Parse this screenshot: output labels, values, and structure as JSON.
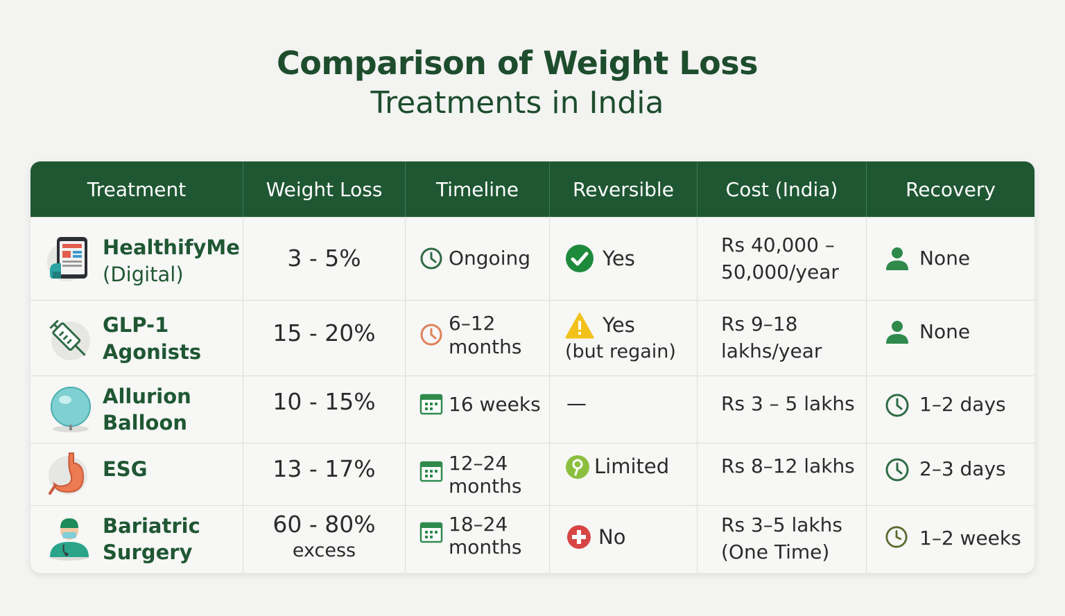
{
  "title": {
    "line1": "Comparison of Weight Loss",
    "line2": "Treatments in India"
  },
  "columns": [
    "Treatment",
    "Weight Loss",
    "Timeline",
    "Reversible",
    "Cost (India)",
    "Recovery"
  ],
  "rows": [
    {
      "treatment": {
        "name": "HealthifyMe",
        "sub": "(Digital)",
        "icon": "phone-app-icon"
      },
      "weight_loss": {
        "value": "3 - 5%",
        "sub": ""
      },
      "timeline": {
        "line1": "Ongoing",
        "line2": "",
        "icon": "clock-icon"
      },
      "reversible": {
        "line1": "Yes",
        "line2": "",
        "icon": "check-circle-icon"
      },
      "cost": {
        "line1": "Rs 40,000 –",
        "line2": "50,000/year"
      },
      "recovery": {
        "value": "None",
        "icon": "person-icon"
      }
    },
    {
      "treatment": {
        "name": "GLP-1",
        "sub": "Agonists",
        "icon": "syringe-icon"
      },
      "weight_loss": {
        "value": "15 - 20%",
        "sub": ""
      },
      "timeline": {
        "line1": "6–12",
        "line2": "months",
        "icon": "clock-icon"
      },
      "reversible": {
        "line1": "Yes",
        "line2": "(but regain)",
        "icon": "warning-icon"
      },
      "cost": {
        "line1": "Rs 9–18",
        "line2": "lakhs/year"
      },
      "recovery": {
        "value": "None",
        "icon": "person-icon"
      }
    },
    {
      "treatment": {
        "name": "Allurion",
        "sub": "Balloon",
        "icon": "balloon-icon"
      },
      "weight_loss": {
        "value": "10 - 15%",
        "sub": ""
      },
      "timeline": {
        "line1": "16 weeks",
        "line2": "",
        "icon": "calendar-icon"
      },
      "reversible": {
        "line1": "—",
        "line2": "",
        "icon": ""
      },
      "cost": {
        "line1": "Rs 3 – 5 lakhs",
        "line2": ""
      },
      "recovery": {
        "value": "1–2 days",
        "icon": "clock-icon"
      }
    },
    {
      "treatment": {
        "name": "ESG",
        "sub": "",
        "icon": "stomach-icon"
      },
      "weight_loss": {
        "value": "13 - 17%",
        "sub": ""
      },
      "timeline": {
        "line1": "12–24",
        "line2": "months",
        "icon": "calendar-icon"
      },
      "reversible": {
        "line1": "Limited",
        "line2": "",
        "icon": "limited-icon"
      },
      "cost": {
        "line1": "Rs 8–12 lakhs",
        "line2": ""
      },
      "recovery": {
        "value": "2–3 days",
        "icon": "clock-icon"
      }
    },
    {
      "treatment": {
        "name": "Bariatric",
        "sub": "Surgery",
        "icon": "surgeon-icon"
      },
      "weight_loss": {
        "value": "60 - 80%",
        "sub": "excess"
      },
      "timeline": {
        "line1": "18–24",
        "line2": "months",
        "icon": "calendar-icon"
      },
      "reversible": {
        "line1": "No",
        "line2": "",
        "icon": "no-cross-icon"
      },
      "cost": {
        "line1": "Rs 3–5 lakhs",
        "line2": "(One Time)"
      },
      "recovery": {
        "value": "1–2 weeks",
        "icon": "clock-icon"
      }
    }
  ],
  "colors": {
    "header_bg": "#1f5733",
    "title": "#1d4d2d",
    "name_text": "#1f5733",
    "check_green": "#1e8a3c",
    "warning_yellow": "#f2c21b",
    "no_red": "#d84545",
    "clock_orange": "#e0805a",
    "clock_green": "#2f6b45"
  }
}
